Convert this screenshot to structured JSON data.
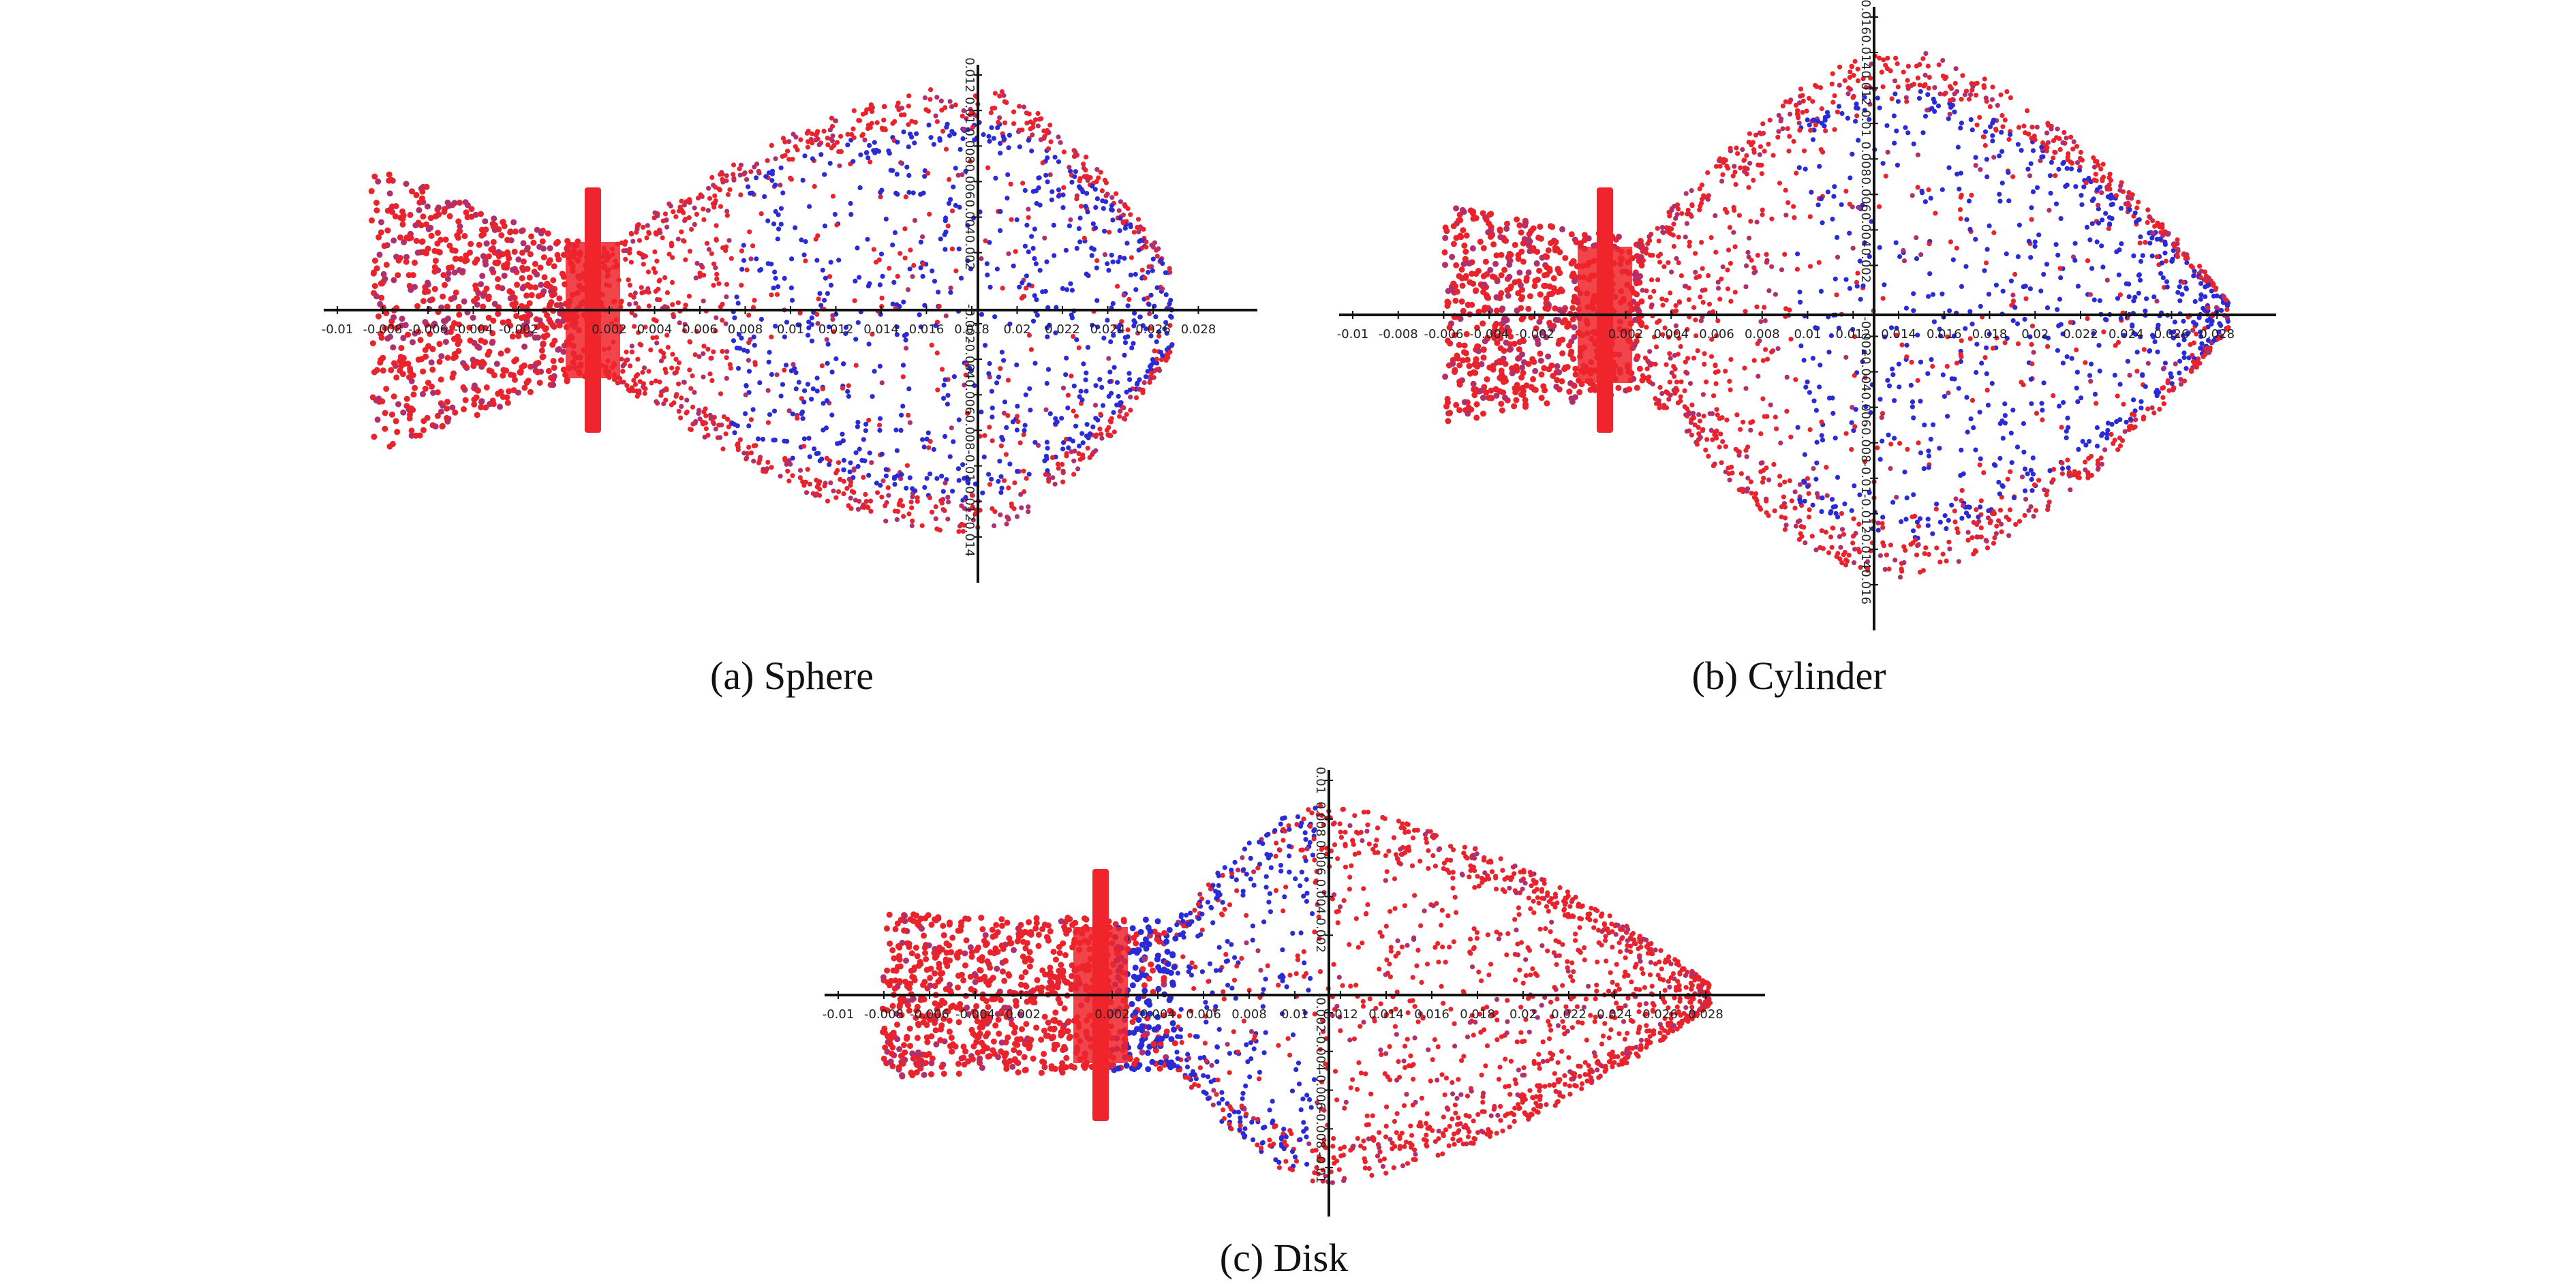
{
  "figure": {
    "colors": {
      "particle_red": "#e8232c",
      "particle_blue": "#2b2bd6",
      "particle_magenta": "#b0306e",
      "axis": "#111111",
      "injector": "#f0242c"
    },
    "panels": [
      {
        "id": "a",
        "caption": "(a) Sphere",
        "x_ticks": [
          "-0.01",
          "-0.008",
          "-0.006",
          "-0.004",
          "-0.002",
          "0.002",
          "0.004",
          "0.006",
          "0.008",
          "0.01",
          "0.012",
          "0.014",
          "0.016",
          "0.018",
          "0.02",
          "0.022",
          "0.024",
          "0.026",
          "0.028"
        ],
        "y_ticks": [
          "0.012",
          "0.01",
          "0.008",
          "0.006",
          "0.004",
          "0.002",
          "-0.002",
          "-0.004",
          "-0.006",
          "-0.008",
          "-0.01",
          "-0.012",
          "-0.014"
        ],
        "spray_shape": "sphere"
      },
      {
        "id": "b",
        "caption": "(b) Cylinder",
        "x_ticks": [
          "-0.01",
          "-0.008",
          "-0.006",
          "-0.004",
          "-0.002",
          "0.002",
          "0.004",
          "0.006",
          "0.008",
          "0.01",
          "0.012",
          "0.014",
          "0.016",
          "0.018",
          "0.02",
          "0.022",
          "0.024",
          "0.026",
          "0.028"
        ],
        "y_ticks": [
          "0.016",
          "0.014",
          "0.012",
          "0.01",
          "0.008",
          "0.006",
          "0.004",
          "0.002",
          "-0.002",
          "-0.004",
          "-0.006",
          "-0.008",
          "-0.01",
          "-0.012",
          "-0.014",
          "-0.016"
        ],
        "spray_shape": "cylinder"
      },
      {
        "id": "c",
        "caption": "(c) Disk",
        "x_ticks": [
          "-0.01",
          "-0.008",
          "-0.006",
          "-0.004",
          "-0.002",
          "0.002",
          "0.004",
          "0.006",
          "0.008",
          "0.01",
          "0.012",
          "0.014",
          "0.016",
          "0.018",
          "0.02",
          "0.022",
          "0.024",
          "0.026",
          "0.028"
        ],
        "y_ticks": [
          "0.01",
          "0.008",
          "0.006",
          "0.004",
          "0.002",
          "-0.002",
          "-0.004",
          "-0.006",
          "-0.008",
          "-0.01"
        ],
        "spray_shape": "disk"
      }
    ]
  }
}
